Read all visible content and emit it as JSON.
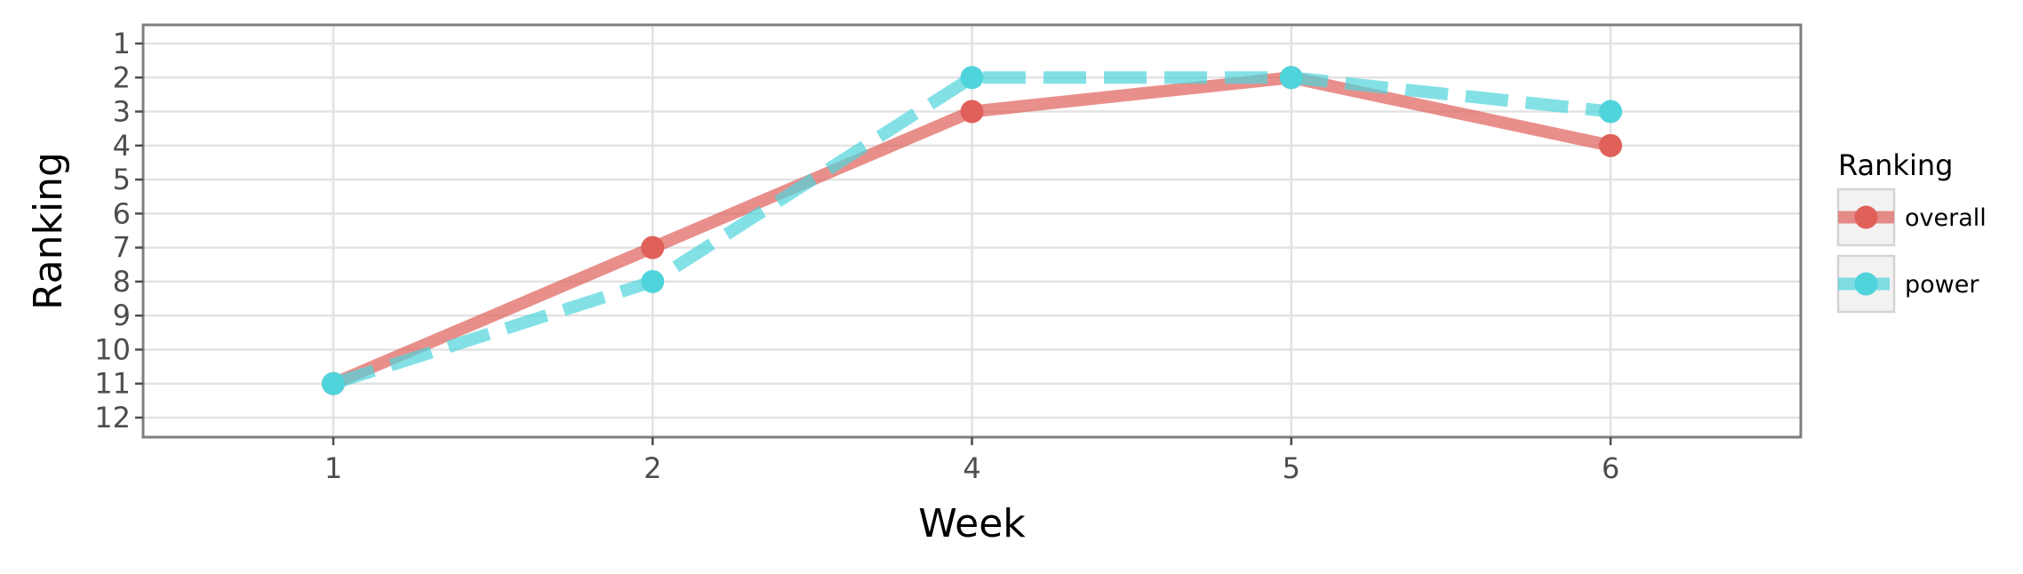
{
  "chart_data": {
    "type": "line",
    "xlabel": "Week",
    "ylabel": "Ranking",
    "categories": [
      "1",
      "2",
      "4",
      "5",
      "6"
    ],
    "y_ticks": [
      "1",
      "2",
      "3",
      "4",
      "5",
      "6",
      "7",
      "8",
      "9",
      "10",
      "11",
      "12"
    ],
    "ylim": [
      1,
      12
    ],
    "y_reversed": true,
    "grid": true,
    "legend": {
      "title": "Ranking",
      "position": "right"
    },
    "series": [
      {
        "name": "overall",
        "values": [
          11,
          7,
          3,
          2,
          4
        ],
        "color": "#e0605a",
        "line_style": "solid"
      },
      {
        "name": "power",
        "values": [
          11,
          8,
          2,
          2,
          3
        ],
        "color": "#4fd4dc",
        "line_style": "dashed"
      }
    ]
  }
}
